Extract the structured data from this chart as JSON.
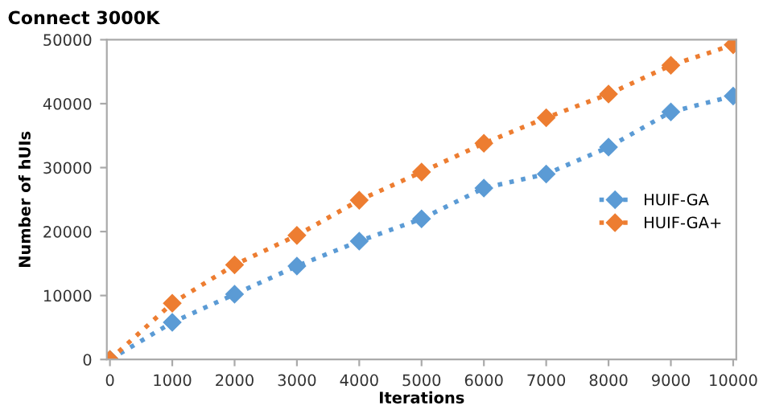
{
  "chart_data": {
    "type": "line",
    "title": "Connect 3000K",
    "xlabel": "Iterations",
    "ylabel": "Number of hUIs",
    "categories": [
      "0",
      "1000",
      "2000",
      "3000",
      "4000",
      "5000",
      "6000",
      "7000",
      "8000",
      "9000",
      "10000"
    ],
    "series": [
      {
        "name": "HUIF-GA",
        "color": "#5b9bd5",
        "values": [
          0,
          5800,
          10200,
          14600,
          18500,
          22000,
          26800,
          29000,
          33200,
          38700,
          41200
        ]
      },
      {
        "name": "HUIF-GA+",
        "color": "#ed7d31",
        "values": [
          0,
          8800,
          14800,
          19400,
          24900,
          29300,
          33800,
          37800,
          41500,
          46000,
          49200
        ]
      }
    ],
    "ylim": [
      0,
      50000
    ],
    "yticks": [
      0,
      10000,
      20000,
      30000,
      40000,
      50000
    ],
    "grid": false,
    "legend": "right",
    "marker": "diamond",
    "line_style": "dotted"
  }
}
